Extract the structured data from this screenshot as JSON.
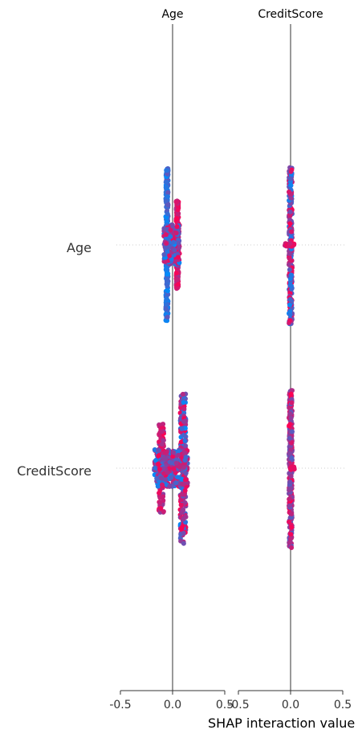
{
  "chart_data": {
    "type": "scatter",
    "title": "",
    "xlabel": "SHAP interaction value",
    "panels": [
      "Age",
      "CreditScore"
    ],
    "rows": [
      "Age",
      "CreditScore"
    ],
    "xlim": [
      -0.5,
      0.5
    ],
    "xticks": [
      "-0.5",
      "0.0",
      "0.5"
    ],
    "grid": false,
    "color_scale": {
      "low": "#008bfb",
      "high": "#ff0052"
    },
    "points": [
      {
        "row": "Age",
        "col": "Age",
        "min": -0.05,
        "max": 0.05,
        "spread": "wide"
      },
      {
        "row": "Age",
        "col": "CreditScore",
        "min": -0.04,
        "max": 0.01,
        "spread": "narrow"
      },
      {
        "row": "CreditScore",
        "col": "Age",
        "min": -0.12,
        "max": 0.15,
        "spread": "wide"
      },
      {
        "row": "CreditScore",
        "col": "CreditScore",
        "min": -0.01,
        "max": 0.04,
        "spread": "narrow"
      }
    ]
  }
}
